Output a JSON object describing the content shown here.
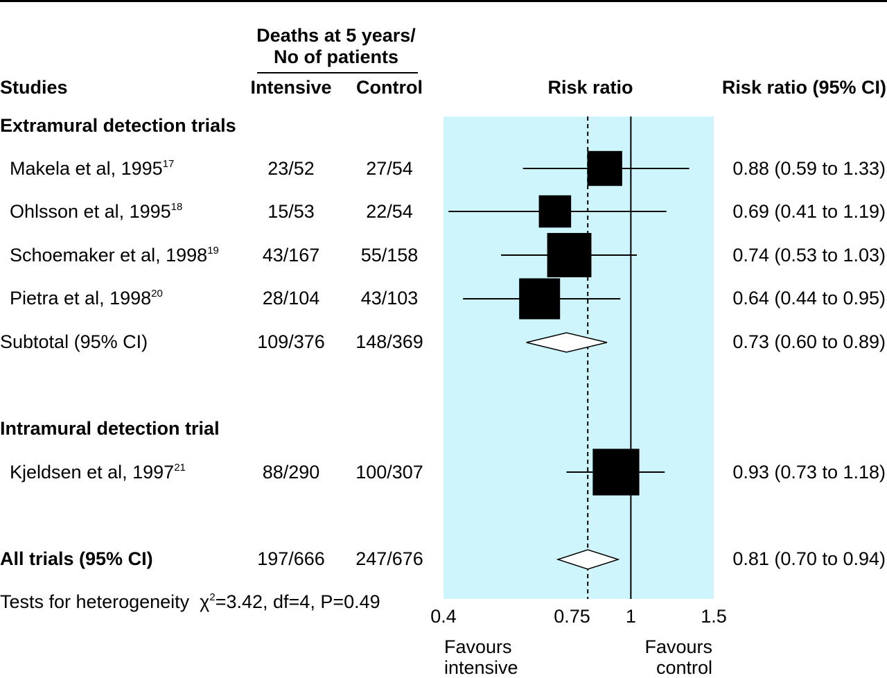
{
  "header": {
    "deaths_line1": "Deaths at 5 years/",
    "deaths_line2": "No of patients",
    "studies": "Studies",
    "intensive": "Intensive",
    "control": "Control",
    "risk_ratio": "Risk ratio",
    "risk_ratio_ci": "Risk ratio (95% CI)"
  },
  "groups": [
    {
      "title": "Extramural detection trials",
      "studies": [
        {
          "name": "Makela et al, 1995",
          "ref": "17",
          "intensive": "23/52",
          "control": "27/54",
          "rr": 0.88,
          "lo": 0.59,
          "hi": 1.33,
          "weight": 0.55,
          "ci_text": "0.88 (0.59 to 1.33)"
        },
        {
          "name": "Ohlsson et al, 1995",
          "ref": "18",
          "intensive": "15/53",
          "control": "22/54",
          "rr": 0.69,
          "lo": 0.41,
          "hi": 1.19,
          "weight": 0.47,
          "ci_text": "0.69 (0.41 to 1.19)"
        },
        {
          "name": "Schoemaker et al, 1998",
          "ref": "19",
          "intensive": "43/167",
          "control": "55/158",
          "rr": 0.74,
          "lo": 0.53,
          "hi": 1.03,
          "weight": 0.83,
          "ci_text": "0.74 (0.53 to 1.03)"
        },
        {
          "name": "Pietra et al, 1998",
          "ref": "20",
          "intensive": "28/104",
          "control": "43/103",
          "rr": 0.64,
          "lo": 0.44,
          "hi": 0.95,
          "weight": 0.73,
          "ci_text": "0.64 (0.44 to 0.95)"
        }
      ],
      "subtotal": {
        "label": "Subtotal (95% CI)",
        "intensive": "109/376",
        "control": "148/369",
        "rr": 0.73,
        "lo": 0.6,
        "hi": 0.89,
        "ci_text": "0.73 (0.60 to 0.89)"
      }
    },
    {
      "title": "Intramural detection trial",
      "studies": [
        {
          "name": "Kjeldsen et al, 1997",
          "ref": "21",
          "intensive": "88/290",
          "control": "100/307",
          "rr": 0.93,
          "lo": 0.73,
          "hi": 1.18,
          "weight": 0.9,
          "ci_text": "0.93 (0.73 to 1.18)"
        }
      ]
    }
  ],
  "all_trials": {
    "label": "All trials (95% CI)",
    "intensive": "197/666",
    "control": "247/676",
    "rr": 0.81,
    "lo": 0.7,
    "hi": 0.94,
    "ci_text": "0.81 (0.70 to 0.94)"
  },
  "heterogeneity": {
    "label": "Tests for heterogeneity",
    "chi": "χ",
    "sup": "2",
    "stats": "=3.42, df=4, P=0.49"
  },
  "favours_left": [
    "Favours",
    "intensive"
  ],
  "favours_right": [
    "Favours",
    "control"
  ],
  "colors": {
    "panel": "#cdf5fb",
    "ink": "#000000",
    "diamond_fill": "#ffffff"
  },
  "chart_data": {
    "type": "forest",
    "scale": "log",
    "xlim": [
      0.4,
      1.5
    ],
    "ticks": [
      {
        "value": 0.4,
        "label": "0.4"
      },
      {
        "value": 0.75,
        "label": "0.75"
      },
      {
        "value": 1,
        "label": "1"
      },
      {
        "value": 1.5,
        "label": "1.5"
      }
    ],
    "null_line": 1,
    "pooled_line": 0.81,
    "xlabel": "Risk ratio"
  }
}
